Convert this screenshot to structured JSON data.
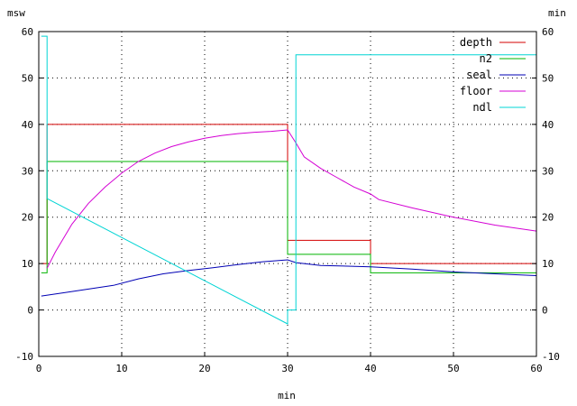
{
  "chart_data": {
    "type": "line",
    "xlabel": "min",
    "ylabel_left": "msw",
    "ylabel_right": "min",
    "xlim": [
      0,
      60
    ],
    "ylim": [
      -10,
      60
    ],
    "x_ticks": [
      0,
      10,
      20,
      30,
      40,
      50,
      60
    ],
    "y_ticks": [
      -10,
      0,
      10,
      20,
      30,
      40,
      50,
      60
    ],
    "grid": true,
    "legend_position": "top-right",
    "series": [
      {
        "name": "depth",
        "color": "#d40000",
        "points": [
          [
            0.3,
            10
          ],
          [
            1,
            10
          ],
          [
            1,
            40
          ],
          [
            30,
            40
          ],
          [
            30,
            15
          ],
          [
            40,
            15
          ],
          [
            40,
            10
          ],
          [
            60,
            10
          ]
        ]
      },
      {
        "name": "n2",
        "color": "#00b400",
        "points": [
          [
            0.3,
            8
          ],
          [
            1,
            8
          ],
          [
            1,
            32
          ],
          [
            30,
            32
          ],
          [
            30,
            12
          ],
          [
            40,
            12
          ],
          [
            40,
            8
          ],
          [
            60,
            8
          ]
        ]
      },
      {
        "name": "seal",
        "color": "#0000b4",
        "points": [
          [
            0.3,
            3
          ],
          [
            3,
            3.7
          ],
          [
            6,
            4.5
          ],
          [
            9,
            5.3
          ],
          [
            12,
            6.7
          ],
          [
            15,
            7.8
          ],
          [
            18,
            8.5
          ],
          [
            21,
            9.1
          ],
          [
            24,
            9.8
          ],
          [
            27,
            10.4
          ],
          [
            30,
            10.8
          ],
          [
            31,
            10.2
          ],
          [
            34,
            9.6
          ],
          [
            40,
            9.3
          ],
          [
            45,
            8.8
          ],
          [
            50,
            8.2
          ],
          [
            55,
            7.8
          ],
          [
            60,
            7.4
          ]
        ]
      },
      {
        "name": "floor",
        "color": "#d400d4",
        "points": [
          [
            1,
            9
          ],
          [
            2,
            12.5
          ],
          [
            4,
            18.5
          ],
          [
            6,
            23
          ],
          [
            8,
            26.5
          ],
          [
            10,
            29.5
          ],
          [
            12,
            32
          ],
          [
            14,
            33.8
          ],
          [
            16,
            35.2
          ],
          [
            18,
            36.2
          ],
          [
            20,
            37
          ],
          [
            22,
            37.6
          ],
          [
            24,
            38
          ],
          [
            26,
            38.3
          ],
          [
            28,
            38.5
          ],
          [
            30,
            38.8
          ],
          [
            31,
            36
          ],
          [
            32,
            33
          ],
          [
            34,
            30.5
          ],
          [
            36,
            28.5
          ],
          [
            38,
            26.5
          ],
          [
            40,
            25
          ],
          [
            41,
            23.8
          ],
          [
            45,
            22
          ],
          [
            50,
            20
          ],
          [
            55,
            18.3
          ],
          [
            60,
            17
          ]
        ]
      },
      {
        "name": "ndl",
        "color": "#00d4d4",
        "points": [
          [
            0.3,
            59
          ],
          [
            1,
            59
          ],
          [
            1,
            24
          ],
          [
            30,
            -3
          ],
          [
            30,
            0
          ],
          [
            31,
            0
          ],
          [
            31,
            55
          ],
          [
            60,
            55
          ]
        ]
      }
    ]
  }
}
